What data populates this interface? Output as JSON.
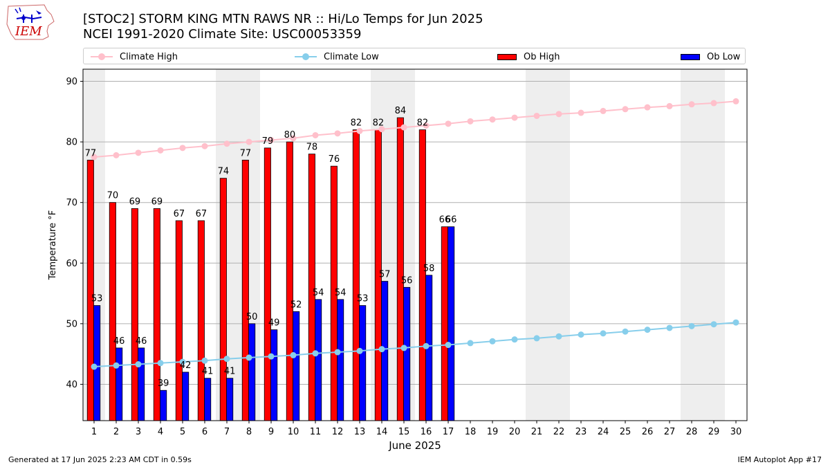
{
  "header": {
    "title_line1": "[STOC2] STORM KING MTN RAWS NR :: Hi/Lo Temps for Jun 2025",
    "title_line2": "NCEI 1991-2020 Climate Site: USC00053359"
  },
  "logo": {
    "text": "IEM",
    "color": "#cc0000"
  },
  "legend": {
    "climate_high": "Climate High",
    "climate_low": "Climate Low",
    "ob_high": "Ob High",
    "ob_low": "Ob Low"
  },
  "chart_data": {
    "type": "bar",
    "xlabel": "June 2025",
    "ylabel": "Temperature °F",
    "ylim": [
      34,
      92
    ],
    "yticks": [
      40,
      50,
      60,
      70,
      80,
      90
    ],
    "grid": true,
    "legend_position": "top",
    "days": [
      1,
      2,
      3,
      4,
      5,
      6,
      7,
      8,
      9,
      10,
      11,
      12,
      13,
      14,
      15,
      16,
      17,
      18,
      19,
      20,
      21,
      22,
      23,
      24,
      25,
      26,
      27,
      28,
      29,
      30
    ],
    "weekend_bands": [
      [
        1
      ],
      [
        7,
        8
      ],
      [
        14,
        15
      ],
      [
        21,
        22
      ],
      [
        28,
        29
      ]
    ],
    "series": [
      {
        "name": "Ob High",
        "kind": "bar",
        "color": "#ff0000",
        "values": [
          77,
          70,
          69,
          69,
          67,
          67,
          74,
          77,
          79,
          80,
          78,
          76,
          82,
          82,
          84,
          82,
          66
        ]
      },
      {
        "name": "Ob Low",
        "kind": "bar",
        "color": "#0000ff",
        "values": [
          53,
          46,
          46,
          39,
          42,
          41,
          41,
          50,
          49,
          52,
          54,
          54,
          53,
          57,
          56,
          58,
          66
        ]
      },
      {
        "name": "Climate High",
        "kind": "line",
        "color": "#ffc0cb",
        "values": [
          77.5,
          77.8,
          78.2,
          78.6,
          79.0,
          79.3,
          79.7,
          80.0,
          80.3,
          80.6,
          81.1,
          81.4,
          81.8,
          82.1,
          82.4,
          82.7,
          83.0,
          83.4,
          83.7,
          84.0,
          84.3,
          84.6,
          84.8,
          85.1,
          85.4,
          85.7,
          85.9,
          86.2,
          86.4,
          86.7
        ]
      },
      {
        "name": "Climate Low",
        "kind": "line",
        "color": "#87ceeb",
        "values": [
          42.9,
          43.1,
          43.3,
          43.5,
          43.7,
          43.9,
          44.2,
          44.4,
          44.6,
          44.8,
          45.1,
          45.3,
          45.5,
          45.8,
          46.0,
          46.3,
          46.5,
          46.8,
          47.1,
          47.4,
          47.6,
          47.9,
          48.2,
          48.4,
          48.7,
          49.0,
          49.3,
          49.6,
          49.9,
          50.2
        ]
      }
    ]
  },
  "footer": {
    "generated": "Generated at 17 Jun 2025 2:23 AM CDT in 0.59s",
    "app": "IEM Autoplot App #17"
  }
}
